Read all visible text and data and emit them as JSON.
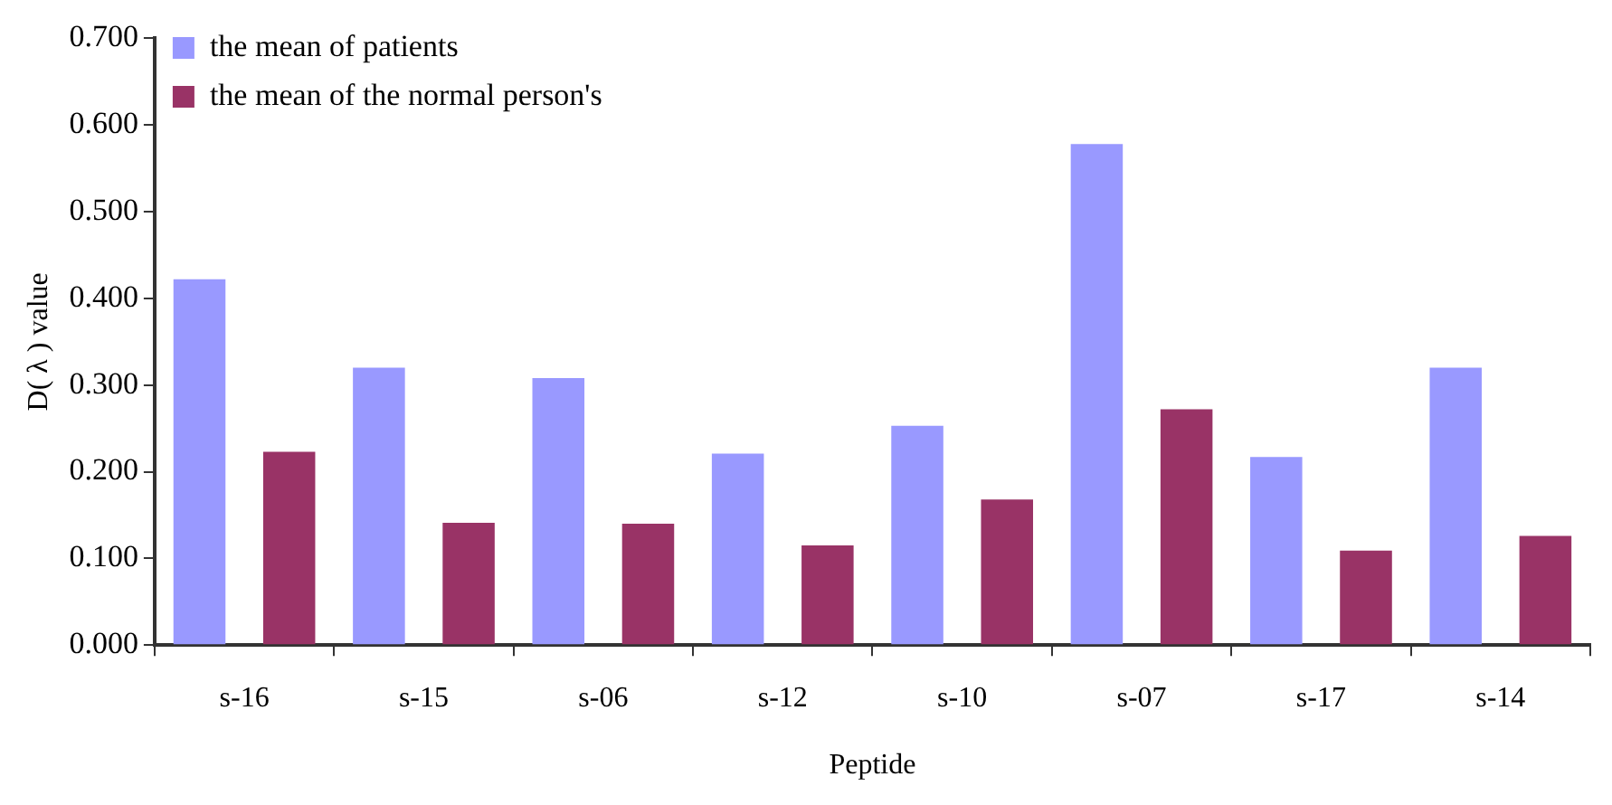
{
  "chart_data": {
    "type": "bar",
    "xlabel": "Peptide",
    "ylabel": "D( λ ) value",
    "categories": [
      "s-16",
      "s-15",
      "s-06",
      "s-12",
      "s-10",
      "s-07",
      "s-17",
      "s-14"
    ],
    "series": [
      {
        "name": "the mean of patients",
        "color": "#9999ff",
        "values": [
          0.422,
          0.32,
          0.308,
          0.221,
          0.253,
          0.578,
          0.217,
          0.32
        ]
      },
      {
        "name": "the mean of the normal person's",
        "color": "#993366",
        "values": [
          0.223,
          0.141,
          0.14,
          0.115,
          0.168,
          0.272,
          0.109,
          0.126
        ]
      }
    ],
    "ylim": [
      0,
      0.7
    ],
    "yticks": [
      {
        "value": 0,
        "label": "0.000"
      },
      {
        "value": 0.1,
        "label": "0.100"
      },
      {
        "value": 0.2,
        "label": "0.200"
      },
      {
        "value": 0.3,
        "label": "0.300"
      },
      {
        "value": 0.4,
        "label": "0.400"
      },
      {
        "value": 0.5,
        "label": "0.500"
      },
      {
        "value": 0.6,
        "label": "0.600"
      },
      {
        "value": 0.7,
        "label": "0.700"
      }
    ],
    "grid": false,
    "legend": "top left"
  }
}
